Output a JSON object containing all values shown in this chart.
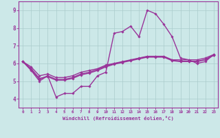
{
  "xlabel": "Windchill (Refroidissement éolien,°C)",
  "background_color": "#cce8e8",
  "grid_color": "#aacccc",
  "line_color": "#993399",
  "border_color": "#993399",
  "ylim": [
    3.5,
    9.5
  ],
  "xlim": [
    -0.5,
    23.5
  ],
  "yticks": [
    4,
    5,
    6,
    7,
    8,
    9
  ],
  "xticks": [
    0,
    1,
    2,
    3,
    4,
    5,
    6,
    7,
    8,
    9,
    10,
    11,
    12,
    13,
    14,
    15,
    16,
    17,
    18,
    19,
    20,
    21,
    22,
    23
  ],
  "series": [
    [
      6.1,
      5.6,
      5.0,
      5.3,
      4.1,
      4.3,
      4.3,
      4.7,
      4.7,
      5.3,
      5.5,
      7.7,
      7.8,
      8.1,
      7.5,
      9.0,
      8.8,
      8.2,
      7.5,
      6.3,
      6.2,
      6.0,
      6.1,
      6.5
    ],
    [
      6.1,
      5.8,
      5.3,
      5.4,
      5.2,
      5.2,
      5.3,
      5.5,
      5.6,
      5.7,
      5.9,
      6.0,
      6.1,
      6.2,
      6.3,
      6.4,
      6.4,
      6.4,
      6.2,
      6.2,
      6.2,
      6.2,
      6.3,
      6.5
    ],
    [
      6.1,
      5.7,
      5.15,
      5.25,
      5.05,
      5.05,
      5.15,
      5.35,
      5.45,
      5.6,
      5.8,
      5.95,
      6.05,
      6.15,
      6.25,
      6.35,
      6.35,
      6.35,
      6.15,
      6.1,
      6.1,
      6.1,
      6.2,
      6.45
    ],
    [
      6.1,
      5.65,
      5.1,
      5.3,
      5.1,
      5.1,
      5.2,
      5.4,
      5.5,
      5.65,
      5.85,
      5.98,
      6.08,
      6.18,
      6.28,
      6.38,
      6.38,
      6.38,
      6.18,
      6.12,
      6.12,
      6.12,
      6.22,
      6.47
    ]
  ]
}
